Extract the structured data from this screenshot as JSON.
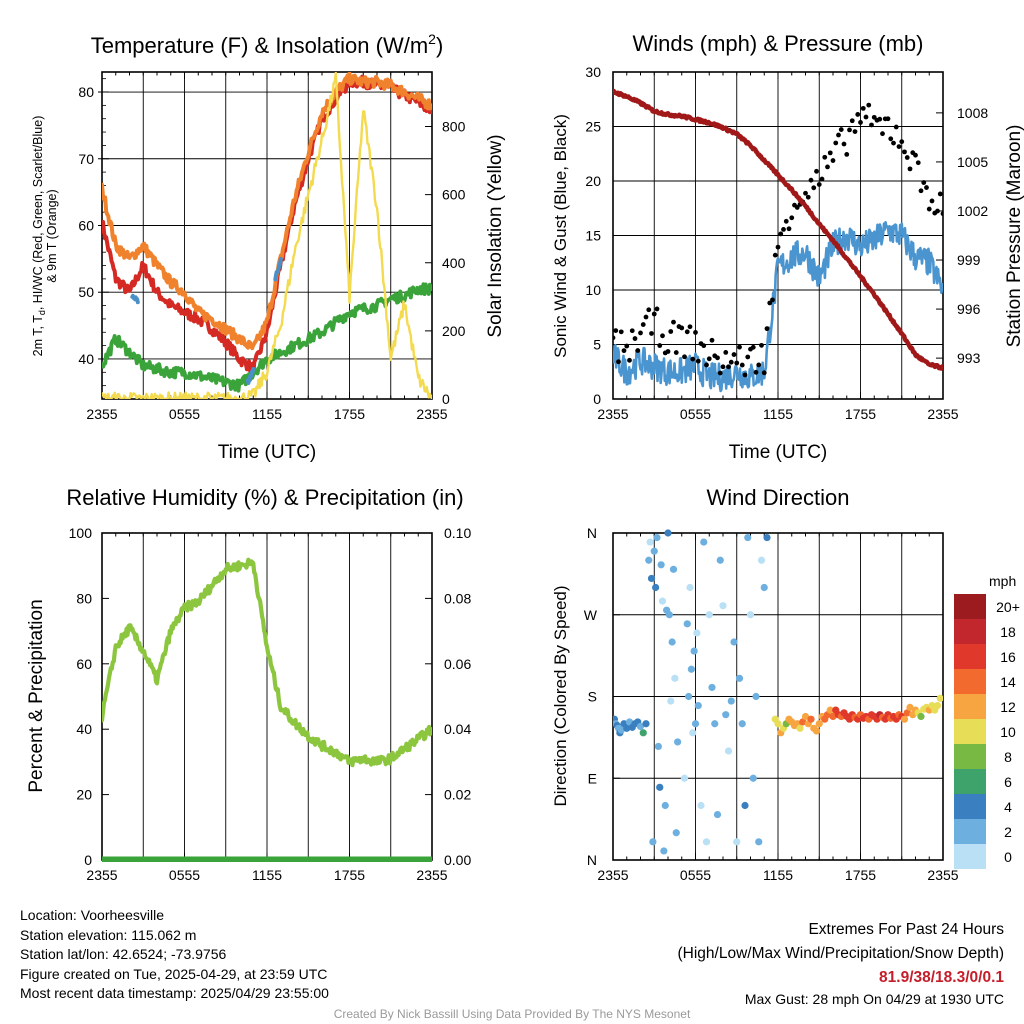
{
  "meta": {
    "location": "Location: Voorheesville",
    "elevation": "Station elevation: 115.062 m",
    "latlon": "Station lat/lon: 42.6524; -73.9756",
    "created": "Figure created on Tue, 2025-04-29, at 23:59 UTC",
    "recent": "Most recent data timestamp: 2025/04/29 23:55:00"
  },
  "extremes": {
    "title": "Extremes For Past 24 Hours",
    "subtitle": "(High/Low/Max Wind/Precipitation/Snow Depth)",
    "values": "81.9/38/18.3/0/0.1",
    "gust": "Max Gust: 28 mph On 04/29 at 1930 UTC"
  },
  "credit": "Created By Nick Bassill Using Data Provided By The NYS Mesonet",
  "colors": {
    "red": "#d42a23",
    "orange": "#f0822d",
    "green": "#3aa33a",
    "blue": "#4a90c8",
    "yellow": "#f4da4e",
    "maroon": "#a01818",
    "wind": "#4a95d0",
    "rh": "#8cc63f",
    "precip": "#3aa33a"
  },
  "time_ticks": [
    "2355",
    "0555",
    "1155",
    "1755",
    "2355"
  ],
  "chart_data": [
    {
      "type": "line",
      "title": "Temperature (F) & Insolation (W/m",
      "title_sup": "2",
      "title_close": ")",
      "xlabel": "Time (UTC)",
      "ylabel_lines": [
        "2m T, T",
        "d",
        ", HI/WC (Red, Green, Scarlet/Blue)",
        "& 9m T (Orange)"
      ],
      "y2label": "Solar Insolation (Yellow)",
      "x_hours": [
        0,
        1,
        2,
        3,
        4,
        5,
        6,
        7,
        8,
        9,
        10,
        11,
        12,
        13,
        14,
        15,
        16,
        17,
        18,
        19,
        20,
        21,
        22,
        23,
        24
      ],
      "ylim": [
        34,
        83
      ],
      "y2lim": [
        0,
        960
      ],
      "yticks": [
        40,
        50,
        60,
        70,
        80
      ],
      "y2ticks": [
        0,
        200,
        400,
        600,
        800
      ],
      "series": [
        {
          "name": "2m T",
          "color_key": "red",
          "values": [
            60.5,
            52,
            50,
            54,
            50,
            48,
            47,
            46,
            44.5,
            42.5,
            40,
            38.5,
            44,
            54,
            63,
            70,
            76,
            79,
            81.5,
            81.5,
            81,
            80.5,
            79.5,
            78.5,
            77
          ]
        },
        {
          "name": "9m T",
          "color_key": "orange",
          "values": [
            65.5,
            57,
            55,
            57,
            54,
            51.5,
            50,
            47,
            46,
            44.5,
            43,
            41.5,
            45.5,
            55,
            64,
            71,
            77,
            80,
            82,
            81.5,
            81.5,
            81,
            80,
            79,
            78
          ]
        },
        {
          "name": "Td",
          "color_key": "green",
          "values": [
            39,
            43,
            41,
            39,
            38.5,
            38,
            38,
            37.5,
            37,
            36.5,
            36,
            38,
            40,
            41,
            42,
            43,
            44,
            45.5,
            47,
            47.5,
            48,
            49,
            49.5,
            50.5,
            50.5
          ]
        },
        {
          "name": "HI/WC",
          "color_key": "blue",
          "segments": [
            {
              "x": [
                2.2,
                2.6
              ],
              "values": [
                49.5,
                48.5
              ]
            },
            {
              "x": [
                10.6,
                11.0
              ],
              "values": [
                36.5,
                38.5
              ]
            },
            {
              "x": [
                12.6,
                13.0
              ],
              "values": [
                52,
                55
              ]
            }
          ]
        },
        {
          "name": "Solar",
          "color_key": "yellow",
          "axis": "y2",
          "values": [
            0,
            0,
            0,
            0,
            0,
            0,
            0,
            0,
            0,
            0,
            0,
            10,
            80,
            220,
            430,
            600,
            760,
            940,
            300,
            850,
            560,
            120,
            280,
            60,
            0
          ]
        }
      ]
    },
    {
      "type": "line",
      "title": "Winds (mph) & Pressure (mb)",
      "xlabel": "Time (UTC)",
      "ylabel": "Sonic Wind & Gust (Blue, Black)",
      "y2label": "Station Pressure (Maroon)",
      "ylim": [
        0,
        30
      ],
      "yticks": [
        0,
        5,
        10,
        15,
        20,
        25,
        30
      ],
      "y2lim": [
        990.5,
        1010.5
      ],
      "y2ticks": [
        993,
        996,
        999,
        1002,
        1005,
        1008
      ],
      "x_hours": [
        0,
        1,
        2,
        3,
        4,
        5,
        6,
        7,
        8,
        9,
        10,
        11,
        12,
        13,
        14,
        15,
        16,
        17,
        18,
        19,
        20,
        21,
        22,
        23,
        24
      ],
      "series": [
        {
          "name": "Sonic Wind",
          "color_key": "wind",
          "values": [
            4,
            2.5,
            3.5,
            3,
            2.5,
            2.5,
            3,
            2,
            2,
            2.5,
            2,
            2.5,
            12,
            13,
            13.5,
            11,
            14,
            15,
            14,
            14.5,
            15.5,
            15,
            13,
            12.5,
            10
          ]
        },
        {
          "name": "Gust",
          "color_key": "black",
          "values": [
            5,
            4.5,
            6,
            7,
            5.5,
            5.5,
            5,
            4,
            3.5,
            3.5,
            3.5,
            4,
            14,
            18,
            19,
            20,
            22,
            24,
            26,
            25,
            25,
            24,
            21,
            19,
            17
          ]
        },
        {
          "name": "Station Pressure",
          "color_key": "maroon",
          "axis": "y2",
          "values": [
            1009.3,
            1009,
            1008.6,
            1008.1,
            1007.9,
            1007.8,
            1007.6,
            1007.4,
            1007.1,
            1006.7,
            1006,
            1005.1,
            1004.2,
            1003.3,
            1002.3,
            1001.2,
            1000.2,
            999.1,
            998,
            996.9,
            995.7,
            994.5,
            993.2,
            992.6,
            992.4
          ]
        }
      ]
    },
    {
      "type": "line",
      "title": "Relative Humidity (%) & Precipitation (in)",
      "ylabel": "Percent & Precipitation",
      "ylim": [
        0,
        100
      ],
      "yticks": [
        0,
        20,
        40,
        60,
        80,
        100
      ],
      "y2lim": [
        0,
        0.1
      ],
      "y2ticks": [
        "0.00",
        "0.02",
        "0.04",
        "0.06",
        "0.08",
        "0.10"
      ],
      "x_hours": [
        0,
        1,
        2,
        3,
        4,
        5,
        6,
        7,
        8,
        9,
        10,
        11,
        12,
        13,
        14,
        15,
        16,
        17,
        18,
        19,
        20,
        21,
        22,
        23,
        24
      ],
      "series": [
        {
          "name": "RH",
          "color_key": "rh",
          "values": [
            44,
            65,
            71,
            64,
            55,
            70,
            77,
            79,
            84,
            89,
            90,
            91,
            65,
            47,
            42,
            38,
            35,
            33,
            30,
            31,
            30,
            31,
            34,
            37,
            40
          ]
        },
        {
          "name": "Precipitation",
          "color_key": "precip",
          "axis": "y2",
          "values": [
            0,
            0,
            0,
            0,
            0,
            0,
            0,
            0,
            0,
            0,
            0,
            0,
            0,
            0,
            0,
            0,
            0,
            0,
            0,
            0,
            0,
            0,
            0,
            0,
            0
          ]
        }
      ]
    },
    {
      "type": "scatter",
      "title": "Wind Direction",
      "ylabel": "Direction (Colored By Speed)",
      "yticks": [
        "N",
        "E",
        "S",
        "W",
        "N"
      ],
      "ylim": [
        0,
        360
      ],
      "colorbar_title": "mph",
      "colorbar_labels": [
        "20+",
        "18",
        "16",
        "14",
        "12",
        "10",
        "8",
        "6",
        "4",
        "2",
        "0"
      ],
      "colorbar_colors": [
        "#9b1b1f",
        "#c1272d",
        "#e0392b",
        "#f26a2e",
        "#f7a541",
        "#e8dd56",
        "#77b943",
        "#3ea36a",
        "#3a7fbf",
        "#6db0e0",
        "#b9e0f5"
      ],
      "points": [
        [
          0.1,
          155,
          4
        ],
        [
          0.2,
          150,
          3
        ],
        [
          0.3,
          148,
          4
        ],
        [
          0.4,
          145,
          3
        ],
        [
          0.5,
          140,
          4
        ],
        [
          0.6,
          143,
          3
        ],
        [
          0.8,
          150,
          4
        ],
        [
          1.0,
          145,
          4
        ],
        [
          1.2,
          152,
          3
        ],
        [
          1.4,
          146,
          4
        ],
        [
          1.6,
          150,
          5
        ],
        [
          1.8,
          152,
          4
        ],
        [
          2.0,
          147,
          3
        ],
        [
          2.2,
          140,
          6
        ],
        [
          2.4,
          150,
          4
        ],
        [
          2.6,
          330,
          2
        ],
        [
          2.7,
          350,
          1
        ],
        [
          2.8,
          310,
          4
        ],
        [
          2.9,
          20,
          2
        ],
        [
          3.0,
          340,
          3
        ],
        [
          3.1,
          300,
          4
        ],
        [
          3.2,
          355,
          2
        ],
        [
          3.3,
          125,
          3
        ],
        [
          3.4,
          80,
          4
        ],
        [
          3.5,
          325,
          2
        ],
        [
          3.6,
          285,
          1
        ],
        [
          3.7,
          10,
          3
        ],
        [
          3.8,
          60,
          2
        ],
        [
          3.9,
          275,
          3
        ],
        [
          4.0,
          360,
          4
        ],
        [
          4.1,
          270,
          2
        ],
        [
          4.2,
          175,
          1
        ],
        [
          4.3,
          240,
          3
        ],
        [
          4.4,
          320,
          2
        ],
        [
          4.5,
          200,
          1
        ],
        [
          4.6,
          30,
          3
        ],
        [
          4.7,
          130,
          2
        ],
        [
          5.2,
          90,
          1
        ],
        [
          5.4,
          260,
          2
        ],
        [
          5.5,
          180,
          3
        ],
        [
          5.6,
          300,
          1
        ],
        [
          5.7,
          210,
          2
        ],
        [
          5.8,
          140,
          1
        ],
        [
          5.9,
          230,
          3
        ],
        [
          6.0,
          150,
          2
        ],
        [
          6.1,
          250,
          1
        ],
        [
          6.2,
          170,
          2
        ],
        [
          6.4,
          60,
          1
        ],
        [
          6.6,
          350,
          2
        ],
        [
          6.8,
          20,
          1
        ],
        [
          7.0,
          270,
          1
        ],
        [
          7.2,
          190,
          2
        ],
        [
          7.4,
          150,
          3
        ],
        [
          7.6,
          50,
          3
        ],
        [
          7.8,
          330,
          2
        ],
        [
          8.0,
          280,
          1
        ],
        [
          8.2,
          160,
          2
        ],
        [
          8.4,
          120,
          1
        ],
        [
          8.6,
          175,
          3
        ],
        [
          8.8,
          240,
          2
        ],
        [
          9.0,
          20,
          1
        ],
        [
          9.2,
          200,
          3
        ],
        [
          9.4,
          150,
          2
        ],
        [
          9.6,
          60,
          4
        ],
        [
          9.8,
          355,
          2
        ],
        [
          10.0,
          270,
          1
        ],
        [
          10.2,
          90,
          2
        ],
        [
          10.4,
          180,
          3
        ],
        [
          10.6,
          20,
          2
        ],
        [
          10.8,
          330,
          1
        ],
        [
          11.0,
          300,
          2
        ],
        [
          11.2,
          355,
          5
        ],
        [
          11.8,
          155,
          10
        ],
        [
          12.0,
          150,
          11
        ],
        [
          12.2,
          140,
          12
        ],
        [
          12.4,
          145,
          11
        ],
        [
          12.6,
          150,
          9
        ],
        [
          12.8,
          155,
          12
        ],
        [
          13.0,
          152,
          12
        ],
        [
          13.2,
          148,
          13
        ],
        [
          13.4,
          150,
          12
        ],
        [
          13.6,
          145,
          11
        ],
        [
          13.8,
          152,
          14
        ],
        [
          14.0,
          158,
          12
        ],
        [
          14.2,
          150,
          13
        ],
        [
          14.4,
          155,
          14
        ],
        [
          14.6,
          145,
          12
        ],
        [
          14.8,
          142,
          13
        ],
        [
          15.0,
          150,
          13
        ],
        [
          15.2,
          158,
          12
        ],
        [
          15.4,
          155,
          14
        ],
        [
          15.6,
          160,
          15
        ],
        [
          15.8,
          165,
          12
        ],
        [
          16.0,
          158,
          15
        ],
        [
          16.2,
          165,
          16
        ],
        [
          16.4,
          160,
          17
        ],
        [
          16.6,
          158,
          15
        ],
        [
          16.8,
          162,
          16
        ],
        [
          17.0,
          158,
          17
        ],
        [
          17.2,
          155,
          16
        ],
        [
          17.4,
          160,
          17
        ],
        [
          17.6,
          157,
          15
        ],
        [
          17.8,
          155,
          16
        ],
        [
          18.0,
          160,
          15
        ],
        [
          18.2,
          156,
          16
        ],
        [
          18.4,
          158,
          17
        ],
        [
          18.6,
          155,
          15
        ],
        [
          18.8,
          160,
          16
        ],
        [
          19.0,
          158,
          17
        ],
        [
          19.2,
          155,
          16
        ],
        [
          19.4,
          160,
          18
        ],
        [
          19.6,
          157,
          15
        ],
        [
          19.8,
          155,
          16
        ],
        [
          20.0,
          160,
          17
        ],
        [
          20.2,
          156,
          15
        ],
        [
          20.4,
          158,
          16
        ],
        [
          20.6,
          155,
          17
        ],
        [
          20.8,
          160,
          15
        ],
        [
          21.0,
          158,
          16
        ],
        [
          21.2,
          155,
          13
        ],
        [
          21.4,
          162,
          14
        ],
        [
          21.6,
          168,
          12
        ],
        [
          21.8,
          160,
          13
        ],
        [
          22.0,
          165,
          12
        ],
        [
          22.2,
          162,
          11
        ],
        [
          22.4,
          158,
          8
        ],
        [
          22.6,
          166,
          10
        ],
        [
          22.8,
          168,
          11
        ],
        [
          23.0,
          165,
          12
        ],
        [
          23.2,
          170,
          10
        ],
        [
          23.4,
          165,
          11
        ],
        [
          23.6,
          170,
          10
        ],
        [
          23.8,
          178,
          10
        ]
      ]
    }
  ]
}
